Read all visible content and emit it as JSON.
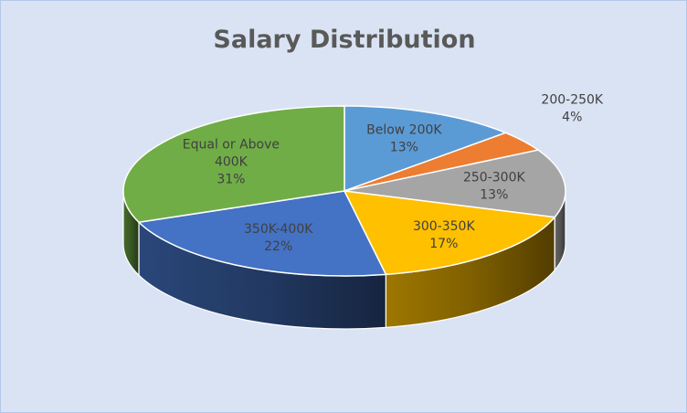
{
  "chart_data": {
    "type": "pie",
    "style": "3d",
    "title": "Salary Distribution",
    "slices": [
      {
        "name": "Below 200K",
        "value": 13,
        "percent_label": "13%",
        "color": "#5b9bd5",
        "label_lines": [
          "Below 200K",
          "13%"
        ]
      },
      {
        "name": "200-250K",
        "value": 4,
        "percent_label": "4%",
        "color": "#ed7d31",
        "label_lines": [
          "200-250K",
          "4%"
        ]
      },
      {
        "name": "250-300K",
        "value": 13,
        "percent_label": "13%",
        "color": "#a5a5a5",
        "label_lines": [
          "250-300K",
          "13%"
        ]
      },
      {
        "name": "300-350K",
        "value": 17,
        "percent_label": "17%",
        "color": "#ffc000",
        "label_lines": [
          "300-350K",
          "17%"
        ]
      },
      {
        "name": "350K-400K",
        "value": 22,
        "percent_label": "22%",
        "color": "#4472c4",
        "label_lines": [
          "350K-400K",
          "22%"
        ]
      },
      {
        "name": "Equal or Above 400K",
        "value": 31,
        "percent_label": "31%",
        "color": "#70ad47",
        "label_lines": [
          "Equal or Above",
          "400K",
          "31%"
        ]
      }
    ],
    "legend": "none"
  }
}
